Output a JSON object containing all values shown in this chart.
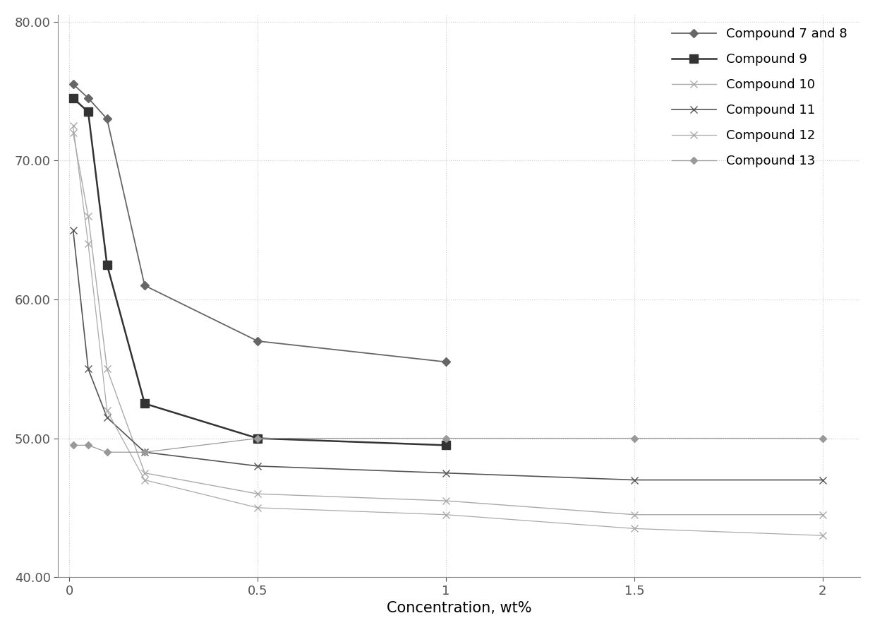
{
  "series": [
    {
      "label": "Compound 7 and 8",
      "color": "#666666",
      "marker": "D",
      "markersize": 6,
      "linewidth": 1.3,
      "linestyle": "-",
      "x": [
        0.01,
        0.05,
        0.1,
        0.2,
        0.5,
        1.0
      ],
      "y": [
        75.5,
        74.5,
        73.0,
        61.0,
        57.0,
        55.5
      ]
    },
    {
      "label": "Compound 9",
      "color": "#333333",
      "marker": "s",
      "markersize": 8,
      "linewidth": 1.8,
      "linestyle": "-",
      "x": [
        0.01,
        0.05,
        0.1,
        0.2,
        0.5,
        1.0
      ],
      "y": [
        74.5,
        73.5,
        62.5,
        52.5,
        50.0,
        49.5
      ]
    },
    {
      "label": "Compound 10",
      "color": "#aaaaaa",
      "marker": "x",
      "markersize": 7,
      "linewidth": 1.0,
      "linestyle": "-",
      "x": [
        0.01,
        0.05,
        0.1,
        0.2,
        0.5,
        1.0,
        1.5,
        2.0
      ],
      "y": [
        72.0,
        66.0,
        55.0,
        47.5,
        46.0,
        45.5,
        44.5,
        44.5
      ]
    },
    {
      "label": "Compound 11",
      "color": "#555555",
      "marker": "x",
      "markersize": 7,
      "linewidth": 1.2,
      "linestyle": "-",
      "x": [
        0.01,
        0.05,
        0.1,
        0.2,
        0.5,
        1.0,
        1.5,
        2.0
      ],
      "y": [
        65.0,
        55.0,
        51.5,
        49.0,
        48.0,
        47.5,
        47.0,
        47.0
      ]
    },
    {
      "label": "Compound 12",
      "color": "#aaaaaa",
      "marker": "x",
      "markersize": 7,
      "linewidth": 0.9,
      "linestyle": "-",
      "x": [
        0.01,
        0.05,
        0.1,
        0.2,
        0.5,
        1.0,
        1.5,
        2.0
      ],
      "y": [
        72.5,
        64.0,
        52.0,
        47.0,
        45.0,
        44.5,
        43.5,
        43.0
      ]
    },
    {
      "label": "Compound 13",
      "color": "#999999",
      "marker": "D",
      "markersize": 5,
      "linewidth": 0.9,
      "linestyle": "-",
      "x": [
        0.01,
        0.05,
        0.1,
        0.2,
        0.5,
        1.0,
        1.5,
        2.0
      ],
      "y": [
        49.5,
        49.5,
        49.0,
        49.0,
        50.0,
        50.0,
        50.0,
        50.0
      ]
    }
  ],
  "xlim": [
    -0.03,
    2.1
  ],
  "ylim": [
    40.0,
    80.5
  ],
  "yticks": [
    40.0,
    50.0,
    60.0,
    70.0,
    80.0
  ],
  "xtick_vals": [
    0,
    0.5,
    1.0,
    1.5,
    2.0
  ],
  "xtick_labels": [
    "0",
    "0.5",
    "1",
    "1.5",
    "2"
  ],
  "xlabel": "Concentration, wt%",
  "xlabel_fontsize": 15,
  "tick_fontsize": 13,
  "legend_fontsize": 13,
  "background_color": "#ffffff",
  "grid_color": "#cccccc",
  "grid_linestyle": ":"
}
